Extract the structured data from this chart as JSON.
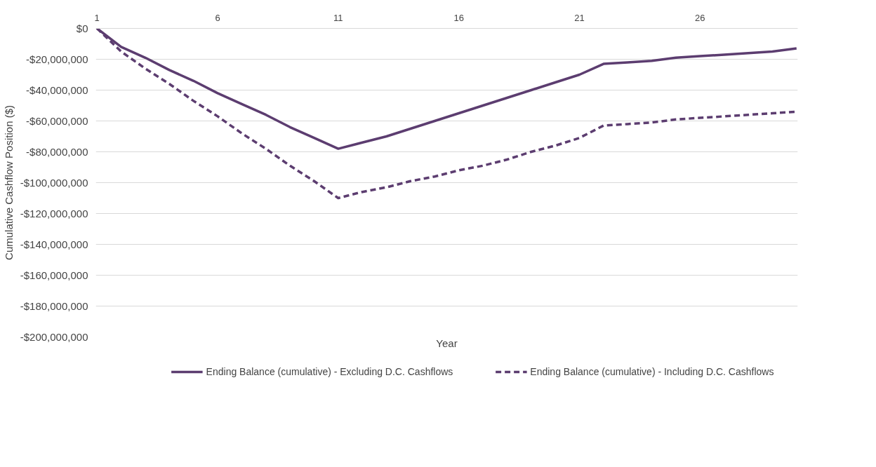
{
  "chart_data": {
    "type": "line",
    "xlabel": "Year",
    "ylabel": "Cumulative Cashflow Position ($)",
    "categories": [
      "1",
      null,
      null,
      null,
      null,
      "6",
      null,
      null,
      null,
      null,
      "11",
      null,
      null,
      null,
      null,
      "16",
      null,
      null,
      null,
      null,
      "21",
      null,
      null,
      null,
      null,
      "26",
      null,
      null,
      null,
      null
    ],
    "series": [
      {
        "name": "Ending Balance (cumulative) - Excluding D.C. Cashflows",
        "color": "#5c3d70",
        "line_style": "solid",
        "values": [
          0,
          -12000000,
          -19000000,
          -27000000,
          -34000000,
          -42000000,
          -49000000,
          -56000000,
          -64000000,
          -71000000,
          -78000000,
          -74000000,
          -70000000,
          -65000000,
          -60000000,
          -55000000,
          -50000000,
          -45000000,
          -40000000,
          -35000000,
          -30000000,
          -23000000,
          -22000000,
          -21000000,
          -19000000,
          -18000000,
          -17000000,
          -16000000,
          -15000000,
          -13000000
        ]
      },
      {
        "name": "Ending Balance (cumulative) - Including D.C. Cashflows",
        "color": "#5c3d70",
        "line_style": "dashed",
        "values": [
          0,
          -15000000,
          -26000000,
          -36000000,
          -47000000,
          -57000000,
          -68000000,
          -78000000,
          -89000000,
          -99000000,
          -110000000,
          -106000000,
          -103000000,
          -99000000,
          -96000000,
          -92000000,
          -89000000,
          -85000000,
          -80000000,
          -76000000,
          -71000000,
          -63000000,
          -62000000,
          -61000000,
          -59000000,
          -58000000,
          -57000000,
          -56000000,
          -55000000,
          -54000000
        ]
      }
    ],
    "ylim": [
      -200000000,
      0
    ],
    "yticks": [
      {
        "value": 0,
        "label": "$0"
      },
      {
        "value": -20000000,
        "label": "-$20,000,000"
      },
      {
        "value": -40000000,
        "label": "-$40,000,000"
      },
      {
        "value": -60000000,
        "label": "-$60,000,000"
      },
      {
        "value": -80000000,
        "label": "-$80,000,000"
      },
      {
        "value": -100000000,
        "label": "-$100,000,000"
      },
      {
        "value": -120000000,
        "label": "-$120,000,000"
      },
      {
        "value": -140000000,
        "label": "-$140,000,000"
      },
      {
        "value": -160000000,
        "label": "-$160,000,000"
      },
      {
        "value": -180000000,
        "label": "-$180,000,000"
      },
      {
        "value": -200000000,
        "label": "-$200,000,000"
      }
    ],
    "grid": "y",
    "legend": "bottom",
    "marker": "none"
  }
}
